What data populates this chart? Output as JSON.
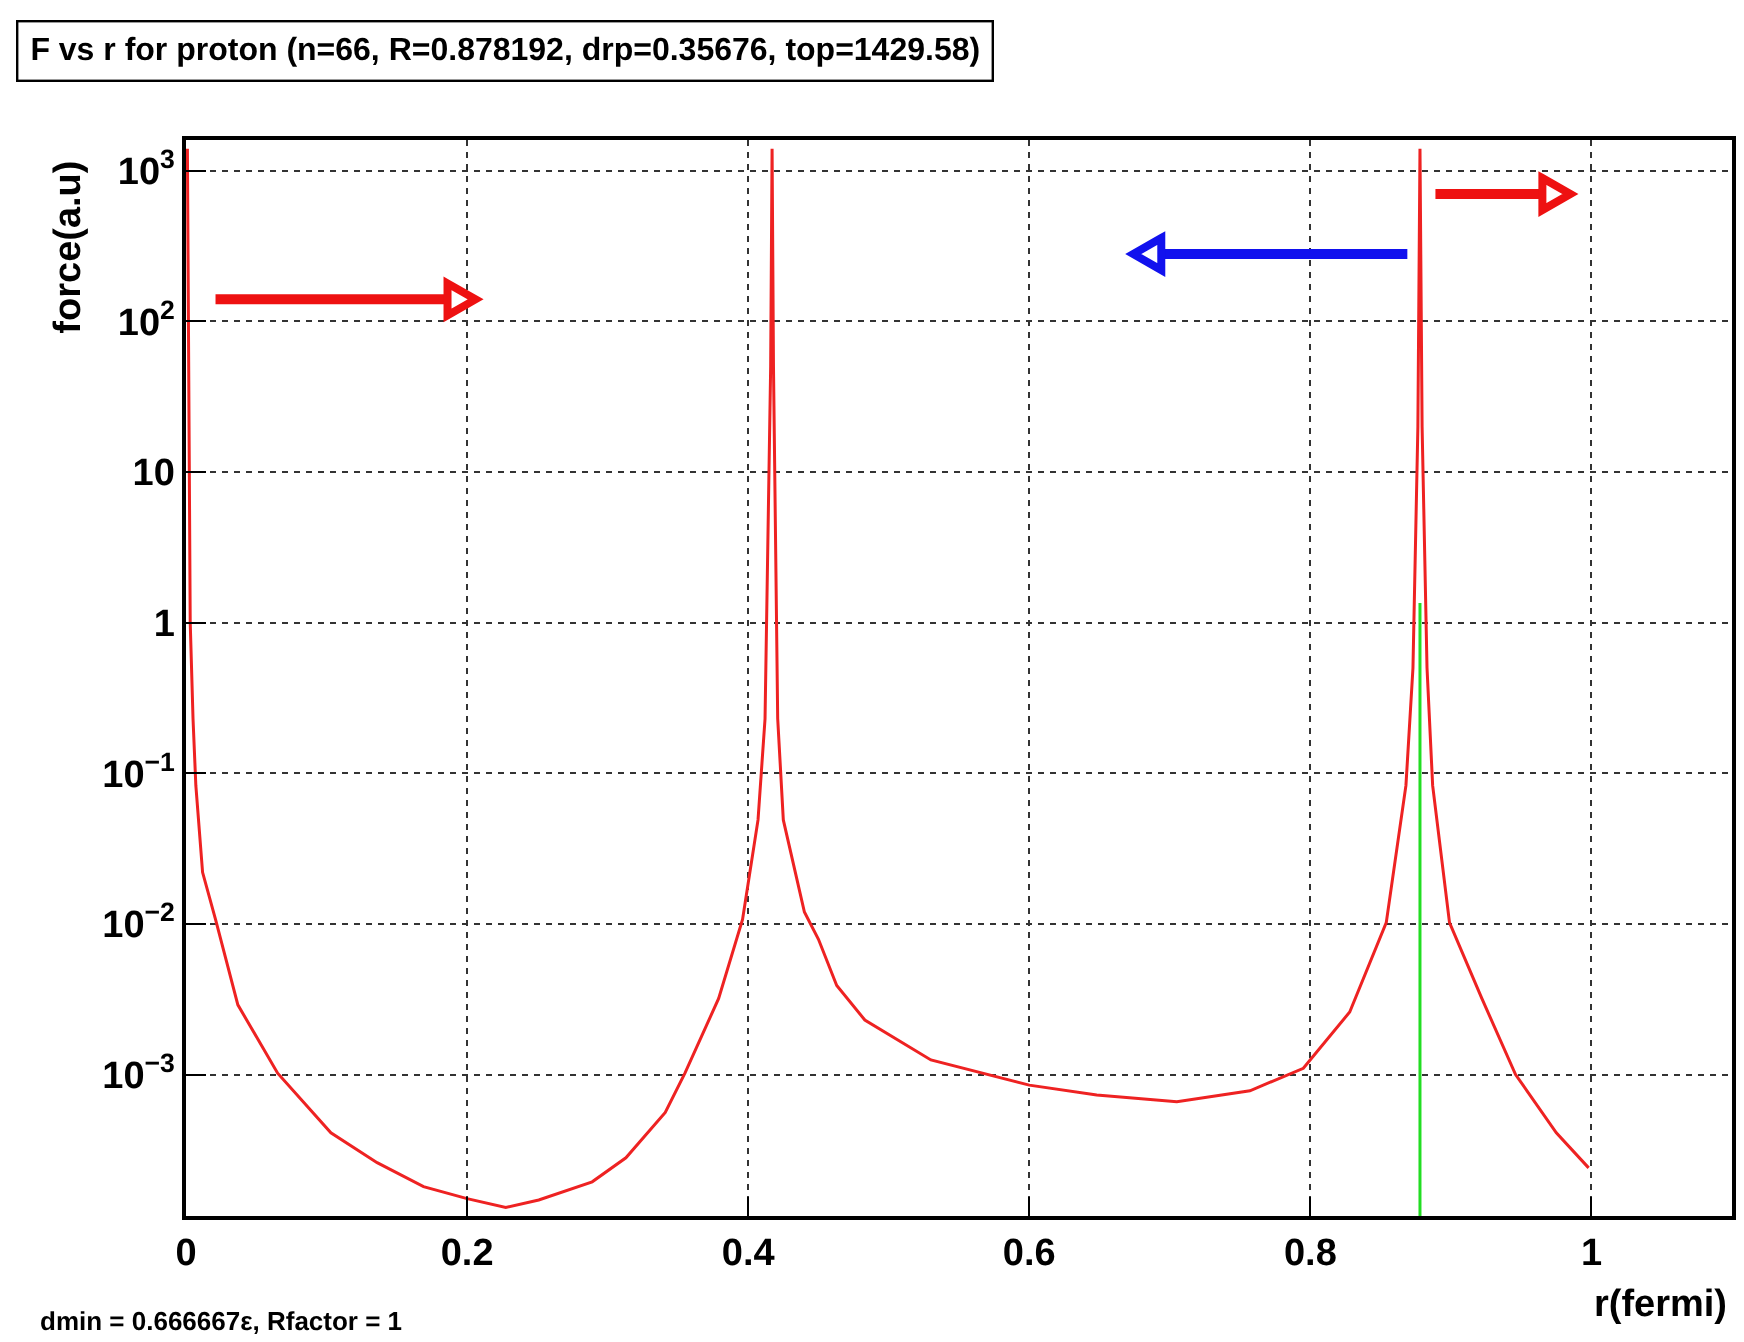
{
  "chart_data": {
    "type": "line",
    "title": "F vs r for proton (n=66, R=0.878192, drp=0.35676, top=1429.58)",
    "xlabel": "r(fermi)",
    "ylabel": "force(a.u)",
    "annotations": [
      "dmin = 0.666667ε, Rfactor = 1"
    ],
    "series": [
      {
        "color": "#ee2222",
        "x": [
          0.001,
          0.003,
          0.005,
          0.007,
          0.0118,
          0.021,
          0.0369,
          0.0652,
          0.1031,
          0.136,
          0.169,
          0.2,
          0.2275,
          0.251,
          0.289,
          0.313,
          0.341,
          0.355,
          0.379,
          0.396,
          0.407,
          0.412,
          0.416,
          0.417,
          0.418,
          0.421,
          0.425,
          0.44,
          0.45,
          0.463,
          0.483,
          0.53,
          0.6,
          0.648,
          0.705,
          0.757,
          0.795,
          0.828,
          0.854,
          0.868,
          0.873,
          0.8765,
          0.878,
          0.8795,
          0.883,
          0.887,
          0.899,
          0.922,
          0.946,
          0.975,
          0.998
        ],
        "values": [
          1400,
          1,
          0.23,
          0.083,
          0.022,
          0.0107,
          0.0029,
          0.00102,
          0.00041,
          0.00026,
          0.00018,
          0.00015,
          0.000131,
          0.000147,
          0.000194,
          0.00028,
          0.00056,
          0.00102,
          0.0032,
          0.0107,
          0.049,
          0.23,
          50,
          1400,
          50,
          0.23,
          0.049,
          0.012,
          0.0079,
          0.0039,
          0.0023,
          0.00125,
          0.00085,
          0.00073,
          0.00066,
          0.00078,
          0.0011,
          0.0026,
          0.0102,
          0.083,
          0.5,
          20,
          1400,
          20,
          0.5,
          0.083,
          0.0102,
          0.0032,
          0.001,
          0.00041,
          0.00024
        ]
      },
      {
        "color": "#22dd22",
        "x": [
          0.878,
          0.878
        ],
        "values": [
          0.000115,
          1.35
        ]
      }
    ],
    "xlim": [
      0,
      1.1
    ],
    "xticks": [
      0,
      0.2,
      0.4,
      0.6,
      0.8,
      1
    ],
    "ylim": [
      0.000115,
      1600
    ],
    "log": true,
    "yticks": [
      {
        "value": 0.001,
        "label": "10$^{−3}$"
      },
      {
        "value": 0.01,
        "label": "10$^{−2}$"
      },
      {
        "value": 0.1,
        "label": "10$^{−1}$"
      },
      1,
      10,
      {
        "value": 100,
        "label": "10$^{2}$"
      },
      {
        "value": 1000,
        "label": "10$^{3}$"
      }
    ],
    "grid": true,
    "marker": "none",
    "line_style": "solid"
  }
}
